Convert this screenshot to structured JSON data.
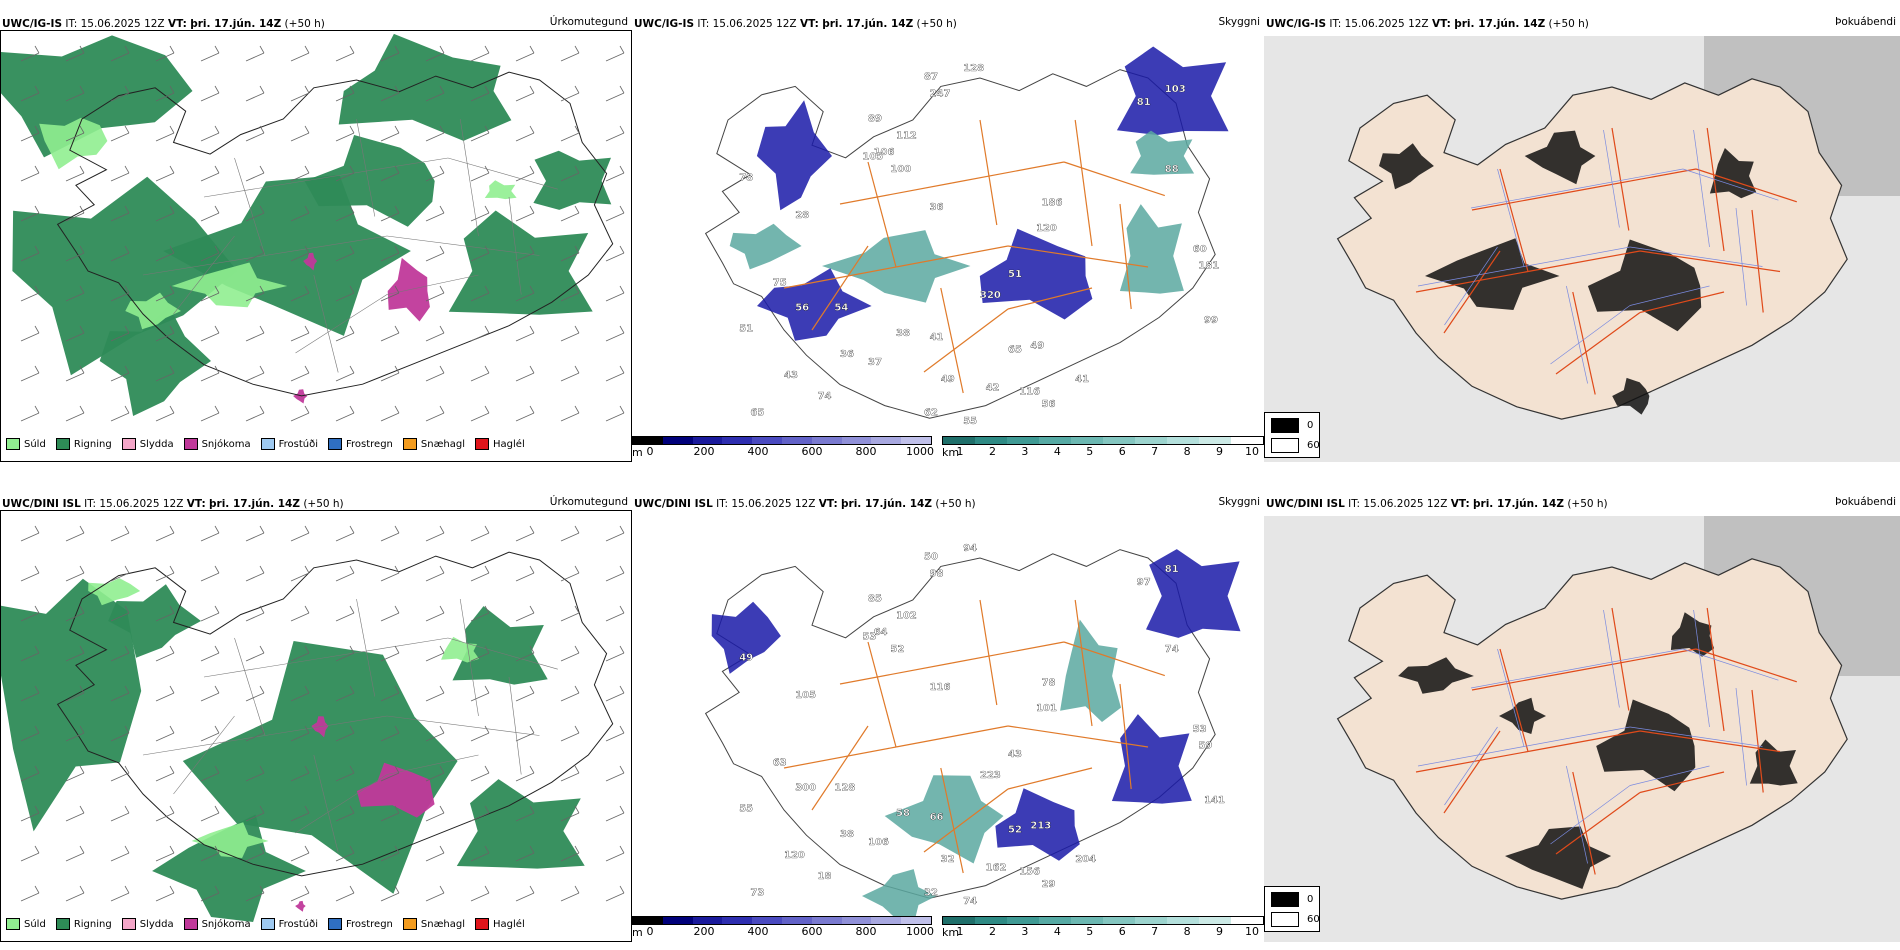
{
  "precip_legend": [
    {
      "label": "Súld",
      "color": "#90ee90"
    },
    {
      "label": "Rigning",
      "color": "#2e8b57"
    },
    {
      "label": "Slydda",
      "color": "#f4a6c8"
    },
    {
      "label": "Snjókoma",
      "color": "#c0399a"
    },
    {
      "label": "Frostúði",
      "color": "#9ec9f0"
    },
    {
      "label": "Frostregn",
      "color": "#2f6fc2"
    },
    {
      "label": "Snæhagl",
      "color": "#f39c1f"
    },
    {
      "label": "Haglél",
      "color": "#e0161c"
    }
  ],
  "cloud_legend": {
    "m_unit": "m",
    "m_ticks": [
      "0",
      "200",
      "400",
      "600",
      "800",
      "1000"
    ],
    "km_unit": "km",
    "km_ticks": [
      "1",
      "2",
      "3",
      "4",
      "5",
      "6",
      "7",
      "8",
      "9",
      "10"
    ]
  },
  "fog_legend": {
    "dark": "0",
    "light": "60"
  },
  "rows": [
    {
      "model": "UWC/IG-IS",
      "it_label": "IT:",
      "it_value": "15.06.2025 12Z",
      "vt_label": "VT:",
      "vt_value": "þri. 17.jún. 14Z",
      "lead": "(+50 h)",
      "panel_titles": [
        "Úrkomutegund",
        "Skyggni",
        "Þokuábendi"
      ],
      "cloud_labels": [
        "128",
        "247",
        "87",
        "89",
        "103",
        "81",
        "112",
        "106",
        "105",
        "100",
        "88",
        "36",
        "186",
        "60",
        "78",
        "28",
        "181",
        "99",
        "120",
        "320",
        "54",
        "38",
        "41",
        "65",
        "49",
        "56",
        "51",
        "37",
        "42",
        "116",
        "41",
        "43",
        "65",
        "74",
        "55",
        "56",
        "51",
        "75",
        "36",
        "62",
        "49"
      ]
    },
    {
      "model": "UWC/DINI ISL",
      "it_label": "IT:",
      "it_value": "15.06.2025 12Z",
      "vt_label": "VT:",
      "vt_value": "þri. 17.jún. 14Z",
      "lead": "(+50 h)",
      "panel_titles": [
        "Úrkomutegund",
        "Skyggni",
        "Þokuábendi"
      ],
      "cloud_labels": [
        "94",
        "98",
        "50",
        "85",
        "81",
        "97",
        "102",
        "64",
        "53",
        "52",
        "74",
        "116",
        "78",
        "53",
        "49",
        "105",
        "59",
        "141",
        "101",
        "223",
        "128",
        "58",
        "66",
        "52",
        "213",
        "300",
        "55",
        "106",
        "162",
        "156",
        "204",
        "120",
        "73",
        "18",
        "74",
        "29",
        "43",
        "63",
        "38",
        "32",
        "32"
      ]
    }
  ]
}
